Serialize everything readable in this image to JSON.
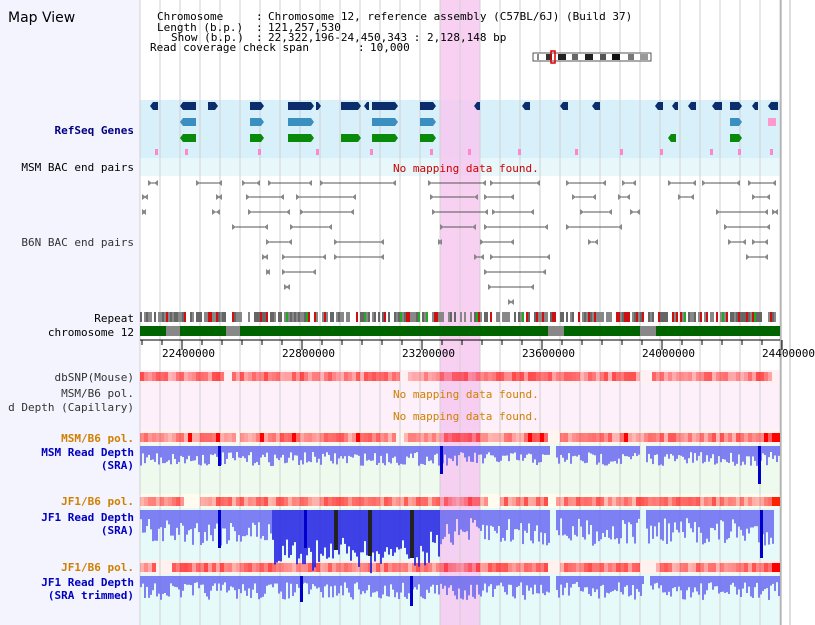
{
  "page": {
    "title": "Map View"
  },
  "info": {
    "chromosome_label": "Chromosome",
    "chromosome_value": "Chromosome 12, reference assembly (C57BL/6J) (Build 37)",
    "length_label": "Length (b.p.)",
    "length_value": "121,257,530",
    "show_label": "Show (b.p.)",
    "show_value": "22,322,196-24,450,343 : 2,128,148 bp",
    "span_label": "Read coverage check span",
    "span_value": "10,000"
  },
  "tracks": {
    "refseq": "RefSeq Genes",
    "msm_bac": "MSM BAC end pairs",
    "b6n_bac": "B6N BAC end pairs",
    "repeat": "Repeat",
    "chromosome": "chromosome 12",
    "dbsnp": "dbSNP(Mouse)",
    "msm_b6_pol_1": "MSM/B6 pol.",
    "read_depth_capillary": "d Depth (Capillary)",
    "msm_b6_pol_2": "MSM/B6 pol.",
    "msm_read_depth_1": "MSM Read Depth",
    "msm_read_depth_2": "(SRA)",
    "jf1_b6_pol_1": "JF1/B6 pol.",
    "jf1_read_depth_1": "JF1 Read Depth",
    "jf1_read_depth_2": "(SRA)",
    "jf1_b6_pol_2": "JF1/B6 pol.",
    "jf1_trimmed_1": "JF1 Read Depth",
    "jf1_trimmed_2": "(SRA trimmed)"
  },
  "messages": {
    "msm_bac_nodata": "No mapping data found.",
    "pol_nodata": "No mapping data found.",
    "capillary_nodata": "No mapping data found."
  },
  "axis": {
    "ticks": [
      "22400000",
      "22800000",
      "23200000",
      "23600000",
      "24000000",
      "24400000"
    ],
    "range_bp": [
      22322196,
      24450343
    ]
  },
  "colors": {
    "refseq_bg": "#d8f0fa",
    "gene_dark": "#0b2d6b",
    "gene_mid": "#3b8fc0",
    "gene_green": "#0a8a0a",
    "highlight": "#f6c8f0",
    "chromosome": "#006400",
    "depth_blue": "#4040e0",
    "pol_red": "#ff0000"
  }
}
